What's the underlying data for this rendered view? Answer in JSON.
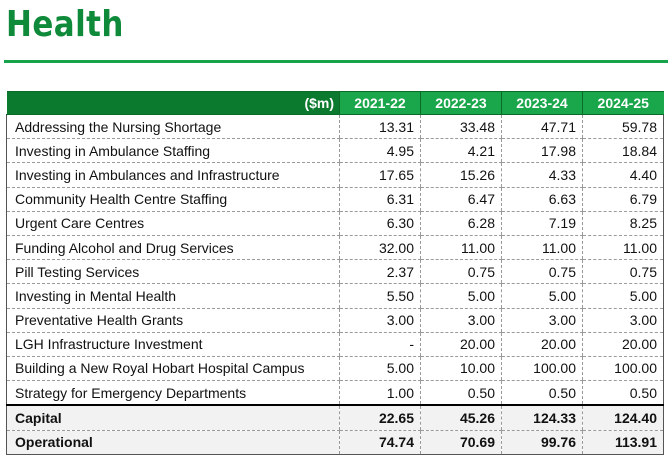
{
  "page": {
    "title": "Health"
  },
  "table": {
    "unit_header": "($m)",
    "years": [
      "2021-22",
      "2022-23",
      "2023-24",
      "2024-25"
    ],
    "rows": [
      {
        "label": "Addressing the Nursing Shortage",
        "values": [
          "13.31",
          "33.48",
          "47.71",
          "59.78"
        ]
      },
      {
        "label": "Investing in Ambulance Staffing",
        "values": [
          "4.95",
          "4.21",
          "17.98",
          "18.84"
        ]
      },
      {
        "label": "Investing in Ambulances and Infrastructure",
        "values": [
          "17.65",
          "15.26",
          "4.33",
          "4.40"
        ]
      },
      {
        "label": "Community Health Centre Staffing",
        "values": [
          "6.31",
          "6.47",
          "6.63",
          "6.79"
        ]
      },
      {
        "label": "Urgent Care Centres",
        "values": [
          "6.30",
          "6.28",
          "7.19",
          "8.25"
        ]
      },
      {
        "label": "Funding Alcohol and Drug Services",
        "values": [
          "32.00",
          "11.00",
          "11.00",
          "11.00"
        ]
      },
      {
        "label": "Pill Testing Services",
        "values": [
          "2.37",
          "0.75",
          "0.75",
          "0.75"
        ]
      },
      {
        "label": "Investing in Mental Health",
        "values": [
          "5.50",
          "5.00",
          "5.00",
          "5.00"
        ]
      },
      {
        "label": "Preventative Health Grants",
        "values": [
          "3.00",
          "3.00",
          "3.00",
          "3.00"
        ]
      },
      {
        "label": "LGH Infrastructure Investment",
        "values": [
          "-",
          "20.00",
          "20.00",
          "20.00"
        ]
      },
      {
        "label": "Building a New Royal Hobart Hospital Campus",
        "values": [
          "5.00",
          "10.00",
          "100.00",
          "100.00"
        ]
      },
      {
        "label": "Strategy for Emergency Departments",
        "values": [
          "1.00",
          "0.50",
          "0.50",
          "0.50"
        ]
      }
    ],
    "summary": [
      {
        "label": "Capital",
        "values": [
          "22.65",
          "45.26",
          "124.33",
          "124.40"
        ]
      },
      {
        "label": "Operational",
        "values": [
          "74.74",
          "70.69",
          "99.76",
          "113.91"
        ]
      }
    ]
  },
  "colors": {
    "title_green": "#0f8a3a",
    "header_dark_green": "#0b7a2f",
    "header_year_green": "#1aa64a",
    "summary_background": "#f2f2f2"
  }
}
